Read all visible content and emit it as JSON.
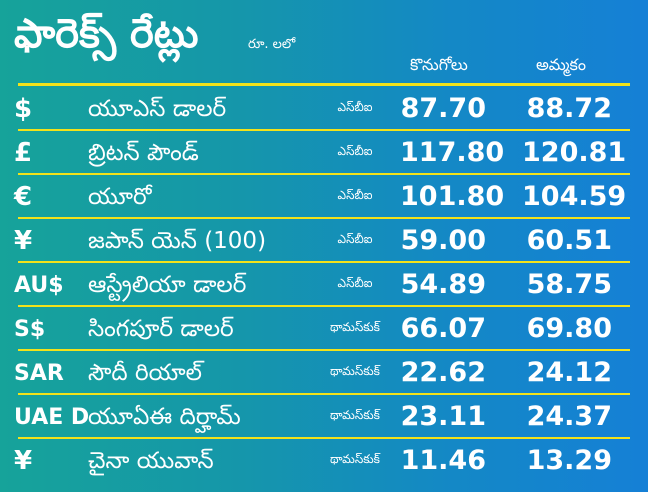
{
  "header": {
    "title": "ఫారెక్స్ రేట్లు",
    "unit": "రూ. లలో",
    "buy_label": "కొనుగోలు",
    "sell_label": "అమ్మకం"
  },
  "colors": {
    "background_from": "#16a39a",
    "background_to": "#1580d6",
    "divider": "#f2e21a",
    "text": "#ffffff"
  },
  "rates": [
    {
      "symbol": "$",
      "currency": "యూఎస్ డాలర్",
      "source": "ఎస్‌బీఐ",
      "buy": "87.70",
      "sell": "88.72"
    },
    {
      "symbol": "£",
      "currency": "బ్రిటన్ పౌండ్",
      "source": "ఎస్‌బీఐ",
      "buy": "117.80",
      "sell": "120.81"
    },
    {
      "symbol": "€",
      "currency": "యూరో",
      "source": "ఎస్‌బీఐ",
      "buy": "101.80",
      "sell": "104.59"
    },
    {
      "symbol": "¥",
      "currency": "జపాన్ యెన్ (100)",
      "source": "ఎస్‌బీఐ",
      "buy": "59.00",
      "sell": "60.51"
    },
    {
      "symbol": "AU$",
      "currency": "ఆస్ట్రేలియా డాలర్",
      "source": "ఎస్‌బీఐ",
      "buy": "54.89",
      "sell": "58.75"
    },
    {
      "symbol": "S$",
      "currency": "సింగపూర్ డాలర్",
      "source": "థామస్‌కుక్",
      "buy": "66.07",
      "sell": "69.80"
    },
    {
      "symbol": "SAR",
      "currency": "సౌదీ రియాల్",
      "source": "థామస్‌కుక్",
      "buy": "22.62",
      "sell": "24.12"
    },
    {
      "symbol": "UAE D",
      "currency": "యూఏఈ దిర్హామ్",
      "source": "థామస్‌కుక్",
      "buy": "23.11",
      "sell": "24.37"
    },
    {
      "symbol": "¥",
      "currency": "చైనా యువాన్",
      "source": "థామస్‌కుక్",
      "buy": "11.46",
      "sell": "13.29"
    }
  ]
}
